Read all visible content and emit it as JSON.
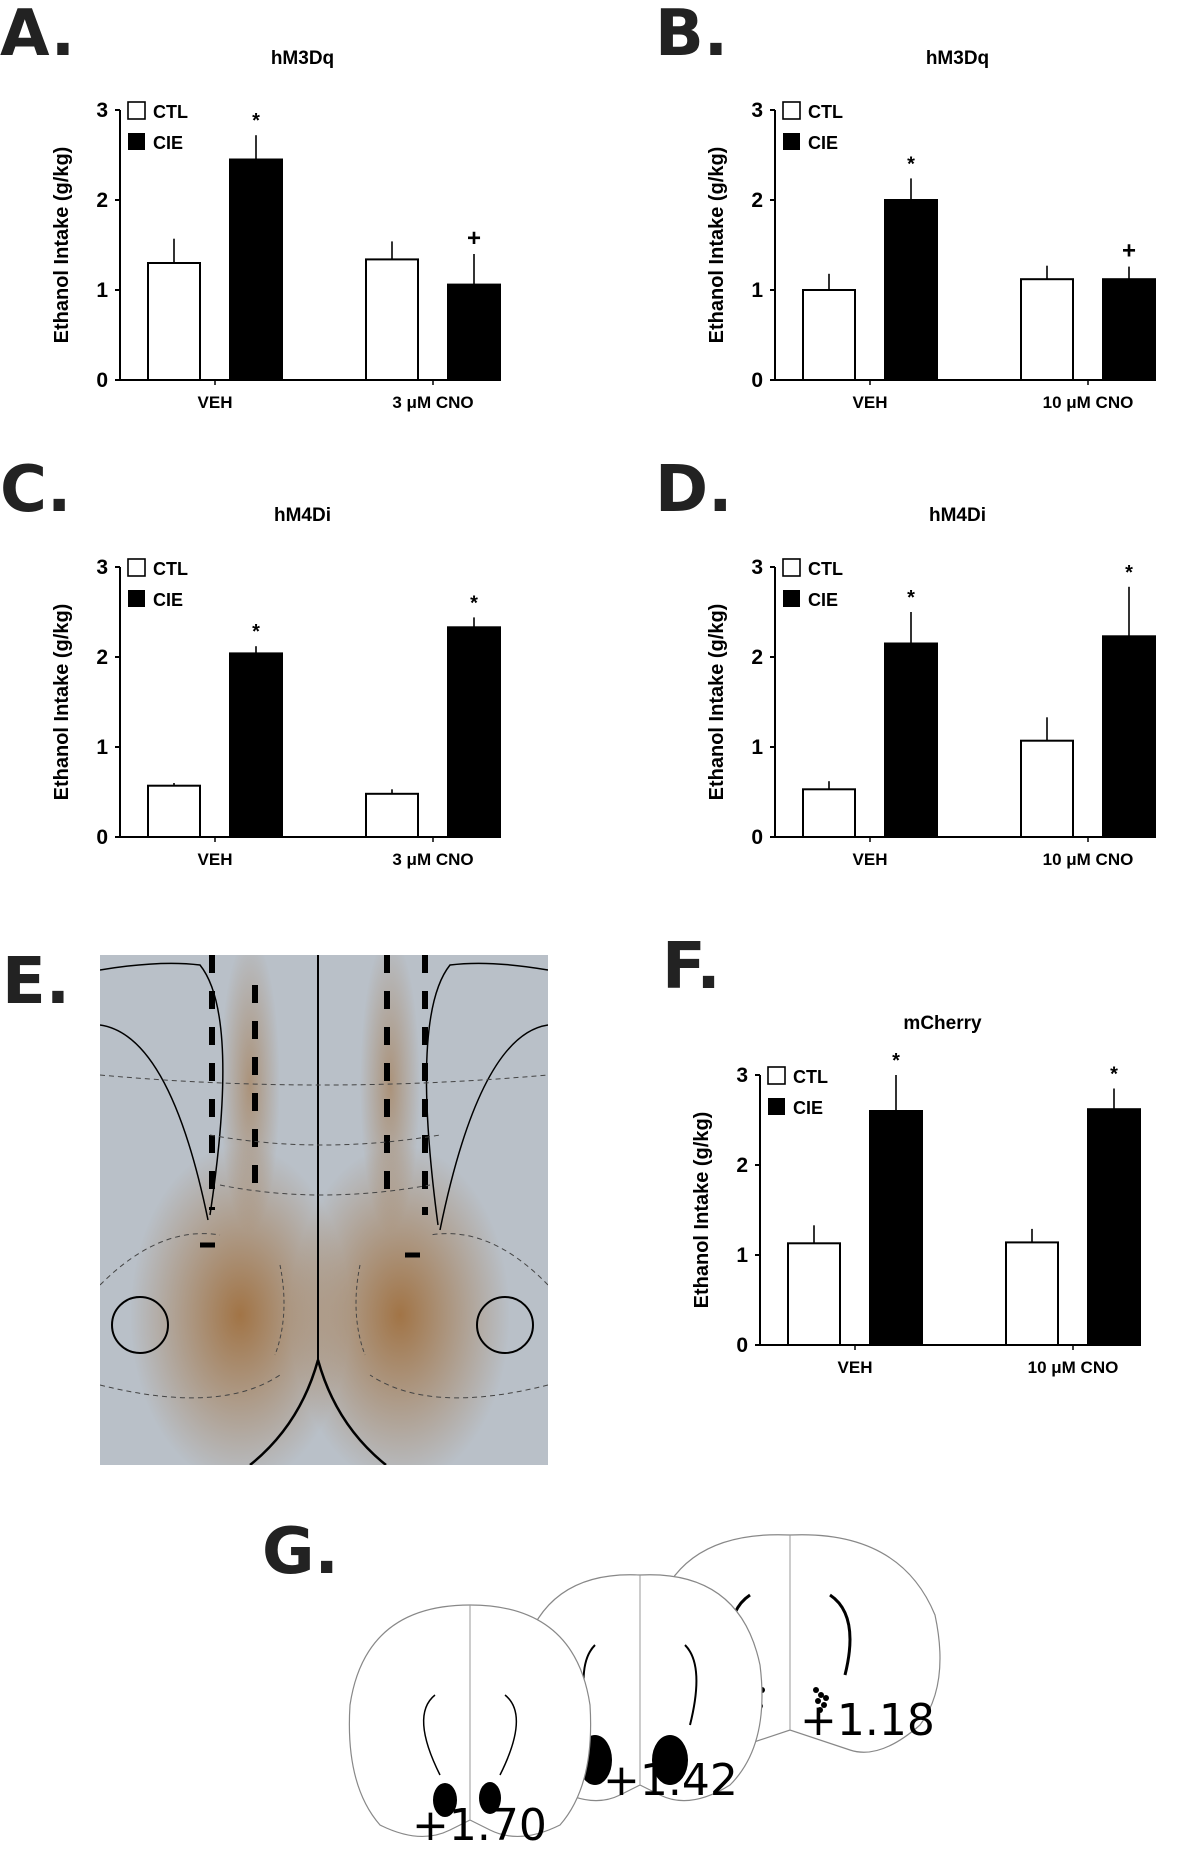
{
  "figure": {
    "panels": [
      {
        "letter": "A.",
        "title": "hM3Dq"
      },
      {
        "letter": "B.",
        "title": "hM3Dq"
      },
      {
        "letter": "C.",
        "title": "hM4Di"
      },
      {
        "letter": "D.",
        "title": "hM4Di"
      },
      {
        "letter": "E."
      },
      {
        "letter": "F.",
        "title": "mCherry"
      },
      {
        "letter": "G."
      }
    ],
    "legend": {
      "ctl": "CTL",
      "cie": "CIE"
    },
    "ylabel": "Ethanol Intake (g/kg)",
    "yticks": [
      "0",
      "1",
      "2",
      "3"
    ],
    "coronal_sections": [
      "+1.70",
      "+1.42",
      "+1.18"
    ]
  },
  "chart_data": [
    {
      "panel": "A",
      "type": "bar",
      "title": "hM3Dq",
      "categories": [
        "VEH",
        "3 μM CNO"
      ],
      "series": [
        {
          "name": "CTL",
          "values": [
            1.3,
            1.34
          ],
          "errors": [
            0.27,
            0.2
          ]
        },
        {
          "name": "CIE",
          "values": [
            2.45,
            1.06
          ],
          "errors": [
            0.27,
            0.34
          ]
        }
      ],
      "annotations": [
        {
          "category": "VEH",
          "series": "CIE",
          "text": "*"
        },
        {
          "category": "3 μM CNO",
          "series": "CIE",
          "text": "+"
        }
      ],
      "xlabel": "",
      "ylabel": "Ethanol Intake (g/kg)",
      "ylim": [
        0,
        3
      ],
      "legend_position": "upper-left"
    },
    {
      "panel": "B",
      "type": "bar",
      "title": "hM3Dq",
      "categories": [
        "VEH",
        "10 μM CNO"
      ],
      "series": [
        {
          "name": "CTL",
          "values": [
            1.0,
            1.12
          ],
          "errors": [
            0.18,
            0.15
          ]
        },
        {
          "name": "CIE",
          "values": [
            2.0,
            1.12
          ],
          "errors": [
            0.24,
            0.14
          ]
        }
      ],
      "annotations": [
        {
          "category": "VEH",
          "series": "CIE",
          "text": "*"
        },
        {
          "category": "10 μM CNO",
          "series": "CIE",
          "text": "+"
        }
      ],
      "xlabel": "",
      "ylabel": "Ethanol Intake (g/kg)",
      "ylim": [
        0,
        3
      ],
      "legend_position": "upper-left"
    },
    {
      "panel": "C",
      "type": "bar",
      "title": "hM4Di",
      "categories": [
        "VEH",
        "3 μM CNO"
      ],
      "series": [
        {
          "name": "CTL",
          "values": [
            0.57,
            0.48
          ],
          "errors": [
            0.03,
            0.05
          ]
        },
        {
          "name": "CIE",
          "values": [
            2.04,
            2.33
          ],
          "errors": [
            0.08,
            0.11
          ]
        }
      ],
      "annotations": [
        {
          "category": "VEH",
          "series": "CIE",
          "text": "*"
        },
        {
          "category": "3 μM CNO",
          "series": "CIE",
          "text": "*"
        }
      ],
      "xlabel": "",
      "ylabel": "Ethanol Intake (g/kg)",
      "ylim": [
        0,
        3
      ],
      "legend_position": "upper-left"
    },
    {
      "panel": "D",
      "type": "bar",
      "title": "hM4Di",
      "categories": [
        "VEH",
        "10 μM CNO"
      ],
      "series": [
        {
          "name": "CTL",
          "values": [
            0.53,
            1.07
          ],
          "errors": [
            0.09,
            0.26
          ]
        },
        {
          "name": "CIE",
          "values": [
            2.15,
            2.23
          ],
          "errors": [
            0.35,
            0.55
          ]
        }
      ],
      "annotations": [
        {
          "category": "VEH",
          "series": "CIE",
          "text": "*"
        },
        {
          "category": "10 μM CNO",
          "series": "CIE",
          "text": "*"
        }
      ],
      "xlabel": "",
      "ylabel": "Ethanol Intake (g/kg)",
      "ylim": [
        0,
        3
      ],
      "legend_position": "upper-left"
    },
    {
      "panel": "F",
      "type": "bar",
      "title": "mCherry",
      "categories": [
        "VEH",
        "10 μM CNO"
      ],
      "series": [
        {
          "name": "CTL",
          "values": [
            1.13,
            1.14
          ],
          "errors": [
            0.2,
            0.15
          ]
        },
        {
          "name": "CIE",
          "values": [
            2.6,
            2.62
          ],
          "errors": [
            0.4,
            0.23
          ]
        }
      ],
      "annotations": [
        {
          "category": "VEH",
          "series": "CIE",
          "text": "*"
        },
        {
          "category": "10 μM CNO",
          "series": "CIE",
          "text": "*"
        }
      ],
      "xlabel": "",
      "ylabel": "Ethanol Intake (g/kg)",
      "ylim": [
        0,
        3
      ],
      "legend_position": "upper-left"
    }
  ]
}
